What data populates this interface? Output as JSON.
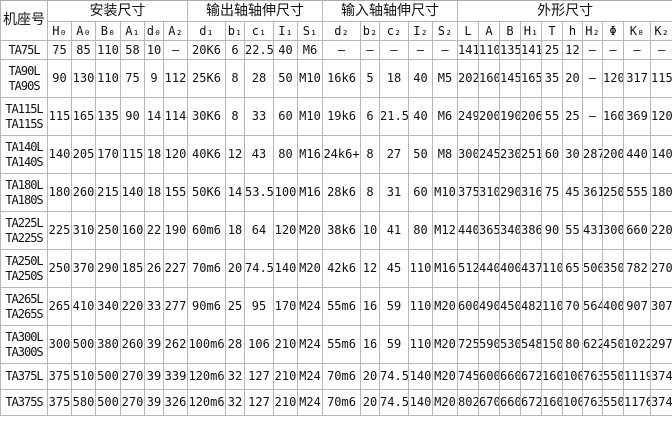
{
  "table": {
    "frame_header": "机座号",
    "groups": [
      {
        "label": "安装尺寸",
        "span": 6
      },
      {
        "label": "输出轴轴伸尺寸",
        "span": 5
      },
      {
        "label": "输入轴轴伸尺寸",
        "span": 5
      },
      {
        "label": "外形尺寸",
        "span": 10
      }
    ],
    "columns": [
      "H₀",
      "A₀",
      "B₀",
      "A₁",
      "d₀",
      "A₂",
      "d₁",
      "b₁",
      "c₁",
      "I₁",
      "S₁",
      "d₂",
      "b₂",
      "c₂",
      "I₂",
      "S₂",
      "L",
      "A",
      "B",
      "H₁",
      "T",
      "h",
      "H₂",
      "Φ",
      "K₀",
      "K₂"
    ],
    "rows": [
      {
        "labels": [
          "TA75L"
        ],
        "values": [
          "75",
          "85",
          "110",
          "58",
          "10",
          "–",
          "20K6",
          "6",
          "22.5",
          "40",
          "M6",
          "–",
          "–",
          "–",
          "–",
          "–",
          "141",
          "110",
          "135",
          "141",
          "25",
          "12",
          "–",
          "–",
          "–",
          "–"
        ]
      },
      {
        "labels": [
          "TA90L",
          "TA90S"
        ],
        "values": [
          "90",
          "130",
          "110",
          "75",
          "9",
          "112",
          "25K6",
          "8",
          "28",
          "50",
          "M10",
          "16k6",
          "5",
          "18",
          "40",
          "M5",
          "202",
          "160",
          "145",
          "165",
          "35",
          "20",
          "–",
          "120",
          "317",
          "115"
        ]
      },
      {
        "labels": [
          "TA115L",
          "TA115S"
        ],
        "values": [
          "115",
          "165",
          "135",
          "90",
          "14",
          "114",
          "30K6",
          "8",
          "33",
          "60",
          "M10",
          "19k6",
          "6",
          "21.5",
          "40",
          "M6",
          "249",
          "200",
          "190",
          "206",
          "55",
          "25",
          "–",
          "160",
          "369",
          "120"
        ]
      },
      {
        "labels": [
          "TA140L",
          "TA140S"
        ],
        "values": [
          "140",
          "205",
          "170",
          "115",
          "18",
          "120",
          "40K6",
          "12",
          "43",
          "80",
          "M16",
          "24k6+",
          "8",
          "27",
          "50",
          "M8",
          "300",
          "245",
          "230",
          "251",
          "60",
          "30",
          "287",
          "200",
          "440",
          "140"
        ]
      },
      {
        "labels": [
          "TA180L",
          "TA180S"
        ],
        "values": [
          "180",
          "260",
          "215",
          "140",
          "18",
          "155",
          "50K6",
          "14",
          "53.5",
          "100",
          "M16",
          "28k6",
          "8",
          "31",
          "60",
          "M10",
          "375",
          "310",
          "290",
          "316",
          "75",
          "45",
          "361",
          "250",
          "555",
          "180"
        ]
      },
      {
        "labels": [
          "TA225L",
          "TA225S"
        ],
        "values": [
          "225",
          "310",
          "250",
          "160",
          "22",
          "190",
          "60m6",
          "18",
          "64",
          "120",
          "M20",
          "38k6",
          "10",
          "41",
          "80",
          "M12",
          "440",
          "365",
          "340",
          "386",
          "90",
          "55",
          "431",
          "300",
          "660",
          "220"
        ]
      },
      {
        "labels": [
          "TA250L",
          "TA250S"
        ],
        "values": [
          "250",
          "370",
          "290",
          "185",
          "26",
          "227",
          "70m6",
          "20",
          "74.5",
          "140",
          "M20",
          "42k6",
          "12",
          "45",
          "110",
          "M16",
          "512",
          "440",
          "400",
          "437",
          "110",
          "65",
          "500",
          "350",
          "782",
          "270"
        ]
      },
      {
        "labels": [
          "TA265L",
          "TA265S"
        ],
        "values": [
          "265",
          "410",
          "340",
          "220",
          "33",
          "277",
          "90m6",
          "25",
          "95",
          "170",
          "M24",
          "55m6",
          "16",
          "59",
          "110",
          "M20",
          "600",
          "490",
          "450",
          "482",
          "110",
          "70",
          "564",
          "400",
          "907",
          "307"
        ]
      },
      {
        "labels": [
          "TA300L",
          "TA300S"
        ],
        "values": [
          "300",
          "500",
          "380",
          "260",
          "39",
          "262",
          "100m6",
          "28",
          "106",
          "210",
          "M24",
          "55m6",
          "16",
          "59",
          "110",
          "M20",
          "725",
          "590",
          "530",
          "548",
          "150",
          "80",
          "622",
          "450",
          "1022",
          "297"
        ]
      },
      {
        "labels": [
          "TA375L"
        ],
        "values": [
          "375",
          "510",
          "500",
          "270",
          "39",
          "339",
          "120m6",
          "32",
          "127",
          "210",
          "M24",
          "70m6",
          "20",
          "74.5",
          "140",
          "M20",
          "745",
          "600",
          "660",
          "672",
          "160",
          "100",
          "763",
          "550",
          "1119",
          "374"
        ]
      },
      {
        "labels": [
          "TA375S"
        ],
        "values": [
          "375",
          "580",
          "500",
          "270",
          "39",
          "326",
          "120m6",
          "32",
          "127",
          "210",
          "M24",
          "70m6",
          "20",
          "74.5",
          "140",
          "M20",
          "802",
          "670",
          "660",
          "672",
          "160",
          "100",
          "763",
          "550",
          "1176",
          "374"
        ]
      }
    ]
  }
}
